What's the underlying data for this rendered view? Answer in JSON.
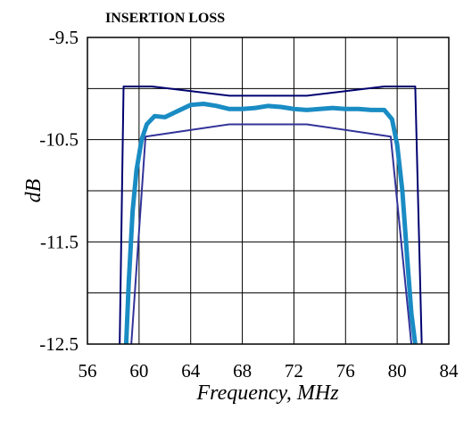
{
  "chart_data": {
    "type": "line",
    "title": "INSERTION LOSS",
    "xlabel": "Frequency, MHz",
    "ylabel": "dB",
    "xlim": [
      56,
      84
    ],
    "ylim": [
      -12.5,
      -9.5
    ],
    "x_ticks": [
      "56",
      "60",
      "64",
      "68",
      "72",
      "76",
      "80",
      "84"
    ],
    "y_ticks": [
      "-9.5",
      "-10.5",
      "-11.5",
      "-12.5"
    ],
    "x_grid_step": 4,
    "y_grid_step": 0.5,
    "grid": true,
    "legend": "none",
    "series": [
      {
        "color": "#000070",
        "stroke_width": 2,
        "x": [
          58.5,
          58.8,
          61,
          67,
          73,
          79,
          81.4,
          81.9
        ],
        "y": [
          -12.5,
          -9.98,
          -9.98,
          -10.07,
          -10.07,
          -9.98,
          -9.98,
          -12.5
        ]
      },
      {
        "color": "#333399",
        "stroke_width": 2,
        "x": [
          59.4,
          60.5,
          67,
          73,
          79.5,
          81.1
        ],
        "y": [
          -12.5,
          -10.47,
          -10.35,
          -10.35,
          -10.47,
          -12.5
        ]
      },
      {
        "color": "#1a8cc4",
        "stroke_width": 5,
        "x": [
          59.0,
          59.2,
          59.5,
          59.8,
          60.2,
          60.6,
          61.2,
          62.0,
          63.0,
          64.0,
          65.0,
          66.0,
          67.0,
          68.0,
          69.0,
          70.0,
          71.0,
          72.0,
          73.0,
          74.0,
          75.0,
          76.0,
          77.0,
          78.0,
          79.0,
          79.6,
          80.0,
          80.4,
          80.8,
          81.1,
          81.4
        ],
        "y": [
          -12.5,
          -11.9,
          -11.2,
          -10.8,
          -10.5,
          -10.35,
          -10.27,
          -10.28,
          -10.22,
          -10.16,
          -10.15,
          -10.17,
          -10.2,
          -10.2,
          -10.19,
          -10.17,
          -10.18,
          -10.2,
          -10.21,
          -10.2,
          -10.19,
          -10.2,
          -10.2,
          -10.21,
          -10.21,
          -10.3,
          -10.55,
          -11.0,
          -11.7,
          -12.2,
          -12.5
        ]
      }
    ]
  }
}
